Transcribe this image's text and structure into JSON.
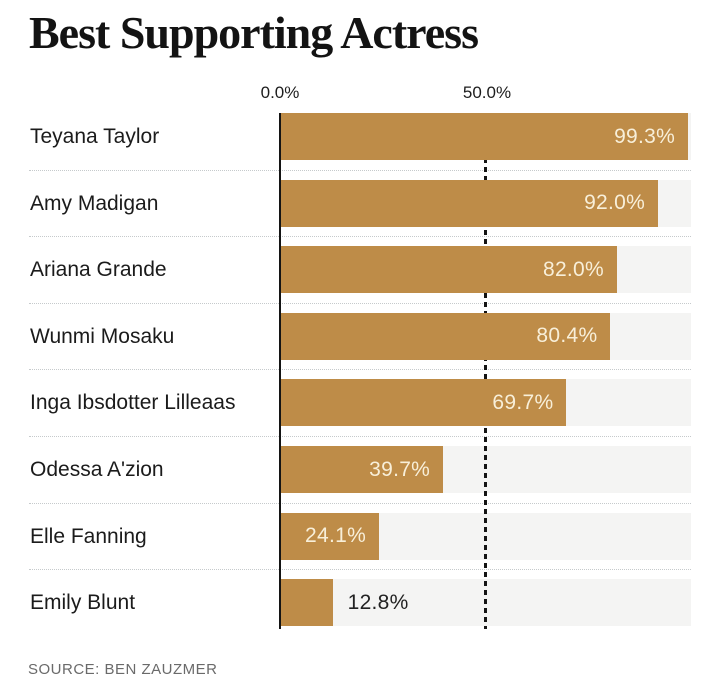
{
  "title": "Best Supporting Actress",
  "source": "SOURCE: BEN ZAUZMER",
  "chart_data": {
    "type": "bar",
    "orientation": "horizontal",
    "title": "Best Supporting Actress",
    "categories": [
      "Teyana Taylor",
      "Amy Madigan",
      "Ariana Grande",
      "Wunmi Mosaku",
      "Inga Ibsdotter Lilleaas",
      "Odessa A'zion",
      "Elle Fanning",
      "Emily Blunt"
    ],
    "values": [
      99.3,
      92.0,
      82.0,
      80.4,
      69.7,
      39.7,
      24.1,
      12.8
    ],
    "value_labels": [
      "99.3%",
      "92.0%",
      "82.0%",
      "80.4%",
      "69.7%",
      "39.7%",
      "24.1%",
      "12.8%"
    ],
    "value_label_placement": [
      "inside",
      "inside",
      "inside",
      "inside",
      "inside",
      "inside",
      "inside",
      "outside"
    ],
    "xlim": [
      0,
      100
    ],
    "x_ticks": [
      {
        "value": 0.0,
        "label": "0.0%"
      },
      {
        "value": 50.0,
        "label": "50.0%"
      }
    ],
    "gridlines": {
      "x_0": "solid",
      "x_50": "dashed"
    },
    "legend": "none",
    "colors": {
      "bar": "#BE8C48",
      "track": "#F4F4F3",
      "value_inside": "#F8EFD9",
      "value_outside": "#222222",
      "axis_line": "#141414",
      "separator": "#C6CACC"
    },
    "source": "SOURCE: BEN ZAUZMER"
  }
}
